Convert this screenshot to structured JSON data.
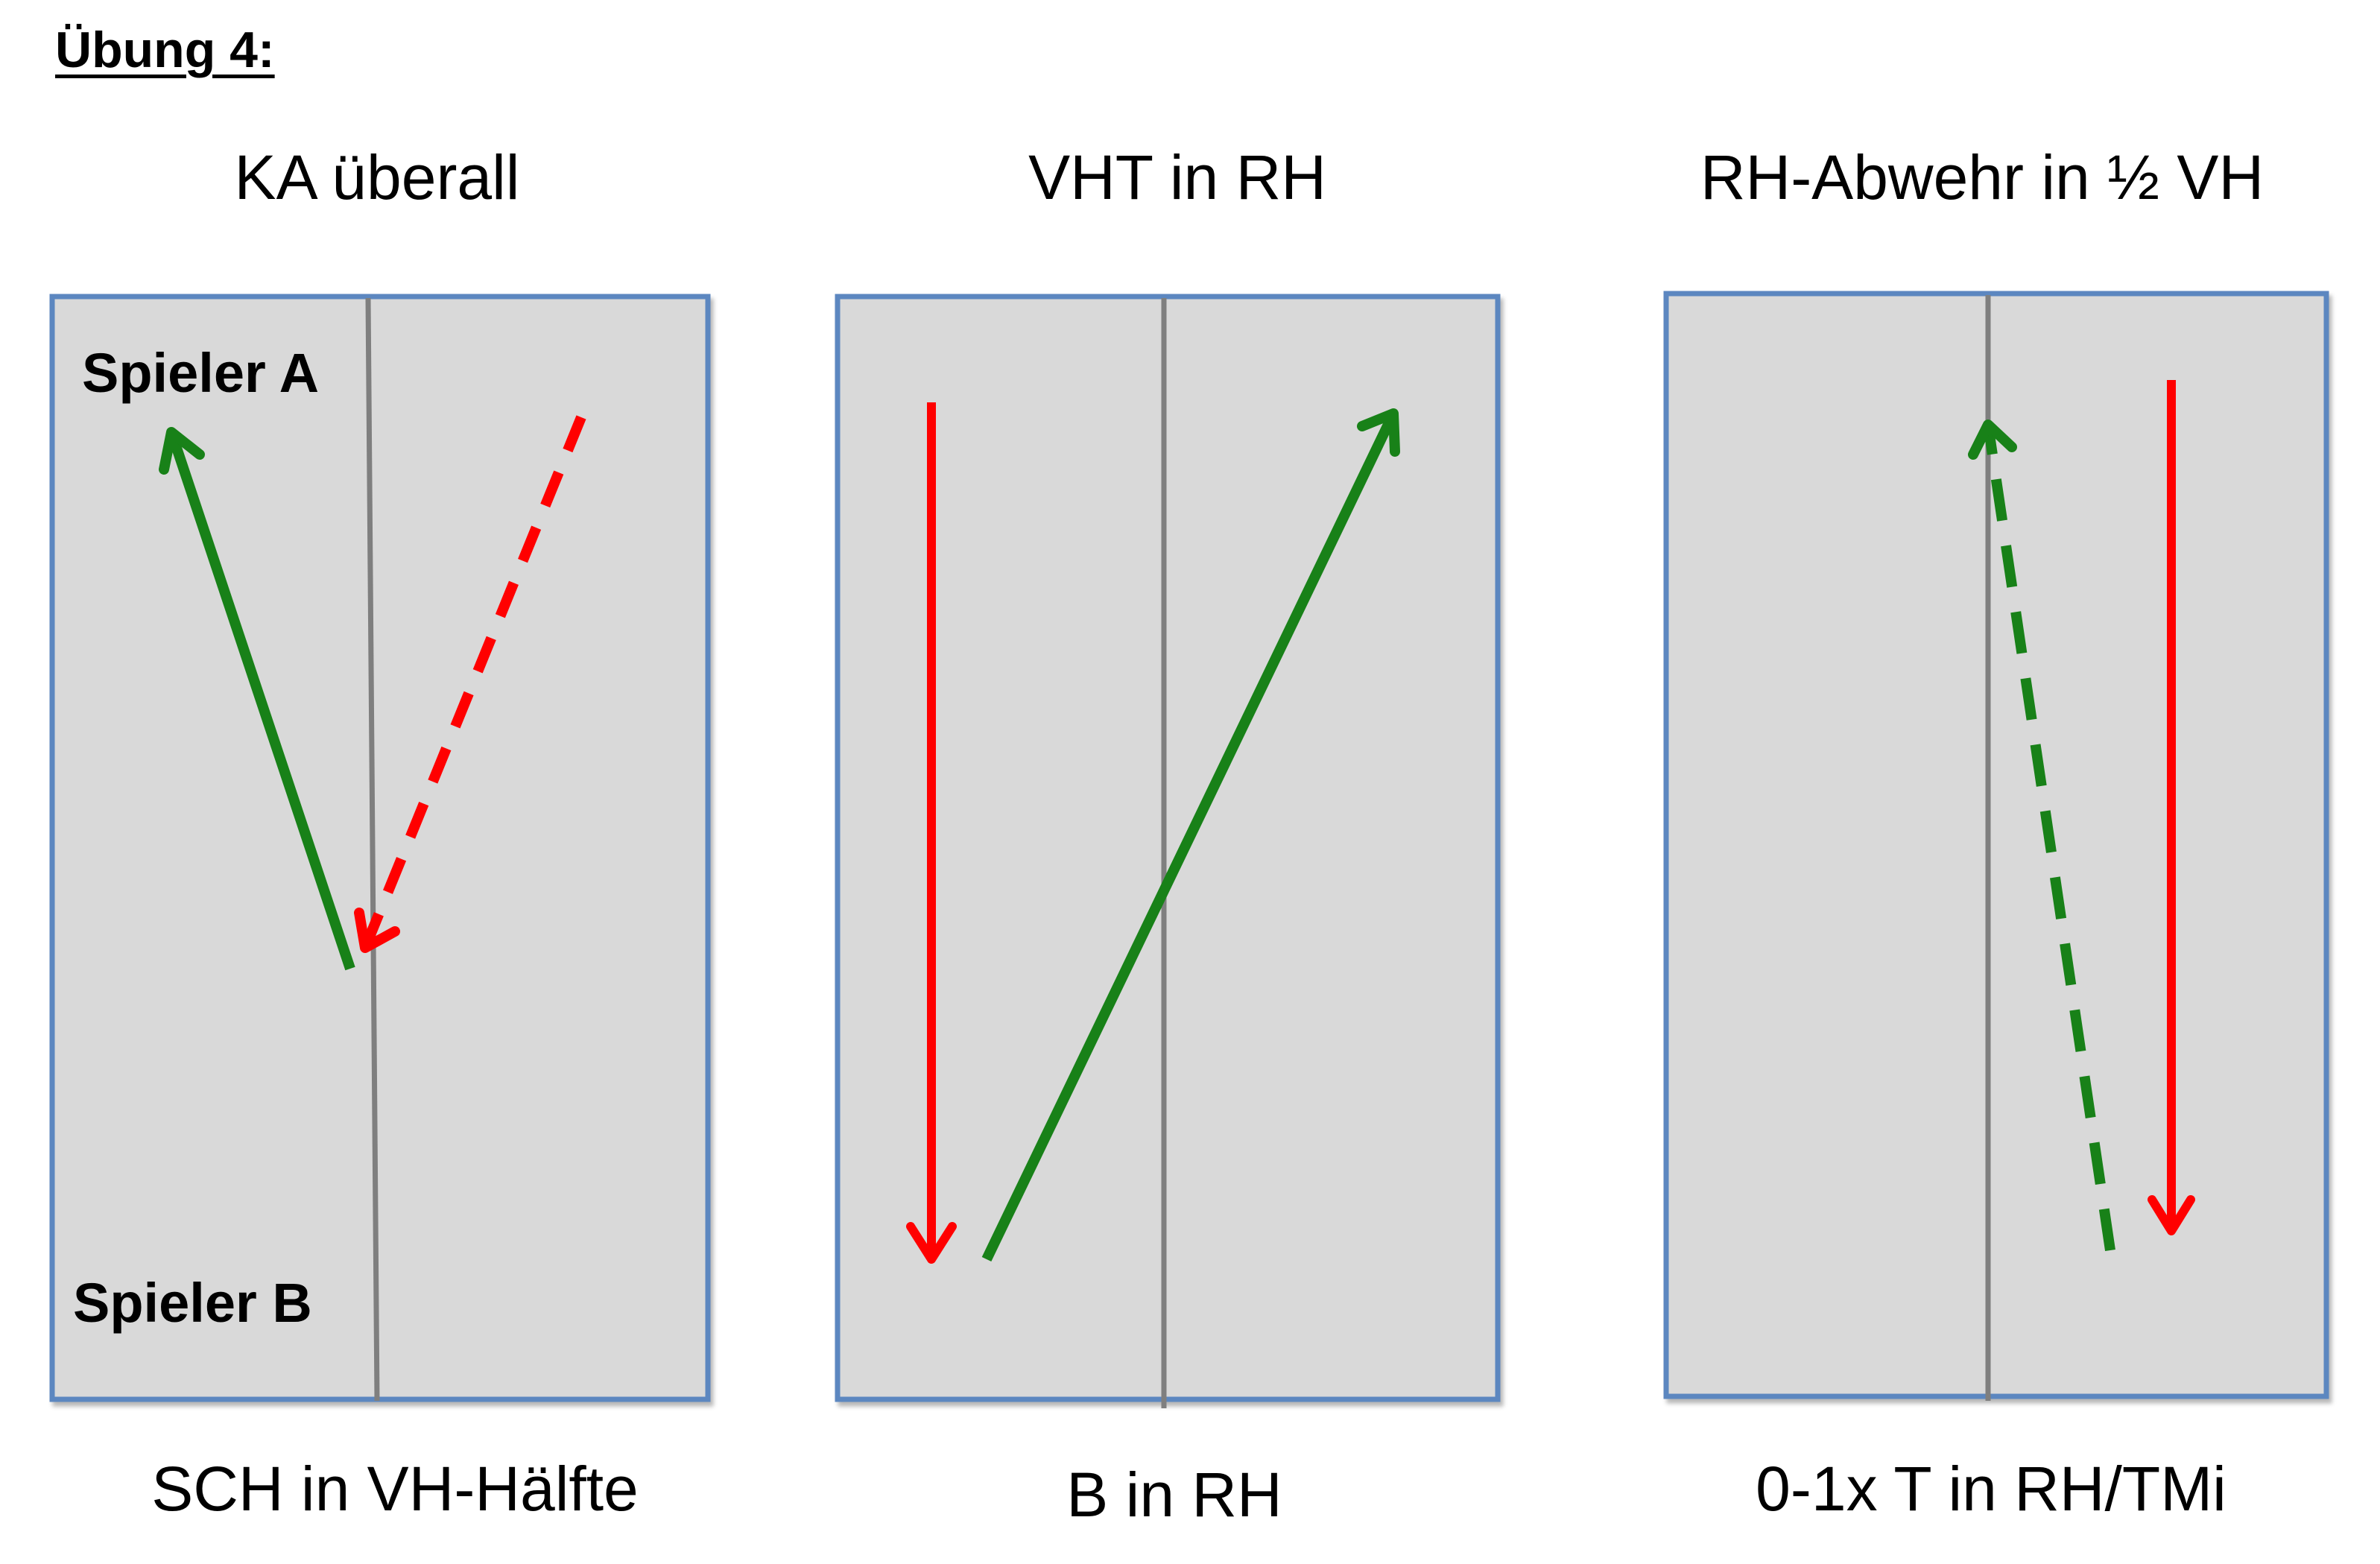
{
  "heading": "Übung 4:",
  "panels": [
    {
      "top_label": "KA überall",
      "bottom_label": "SCH in VH-Hälfte",
      "player_top": "Spieler A",
      "player_bottom": "Spieler B"
    },
    {
      "top_label": "VHT in RH",
      "bottom_label": "B in RH"
    },
    {
      "top_label": "RH-Abwehr in ½ VH",
      "bottom_label": "0-1x T in RH/TMi"
    }
  ],
  "colors": {
    "court_fill": "#d9d9d9",
    "court_border": "#5b87c0",
    "center_line": "#7f7f7f",
    "net": "#000000",
    "green_arrow": "#188118",
    "red_arrow": "#ff0000"
  }
}
